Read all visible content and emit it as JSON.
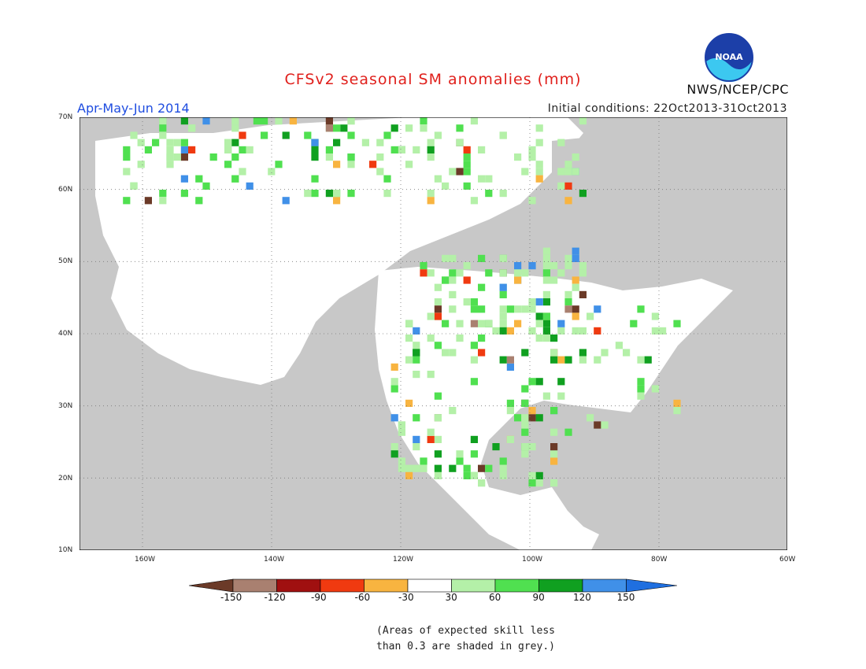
{
  "title": "CFSv2 seasonal SM anomalies (mm)",
  "period": "Apr-May-Jun 2014",
  "initial_conditions": "Initial conditions: 22Oct2013-31Oct2013",
  "organization": "NWS/NCEP/CPC",
  "logo_text": "NOAA",
  "footnote_line1": "(Areas of expected skill less",
  "footnote_line2": "than 0.3 are shaded in grey.)",
  "lat_labels": [
    "70N",
    "60N",
    "50N",
    "40N",
    "30N",
    "20N",
    "10N"
  ],
  "lon_labels": [
    "160W",
    "140W",
    "120W",
    "100W",
    "80W",
    "60W"
  ],
  "legend": {
    "colors": [
      "#6b3a28",
      "#a98070",
      "#a01010",
      "#f03a10",
      "#f8b440",
      "#ffffff",
      "#b4f0a8",
      "#50e050",
      "#10a020",
      "#4090e8",
      "#1f6fe0"
    ],
    "ticks": [
      "-150",
      "-120",
      "-90",
      "-60",
      "-30",
      "30",
      "60",
      "90",
      "120",
      "150"
    ]
  },
  "colors": {
    "ocean": "#c8c8c8",
    "land": "#ffffff",
    "title": "#e0201c",
    "period": "#1f4de0"
  }
}
